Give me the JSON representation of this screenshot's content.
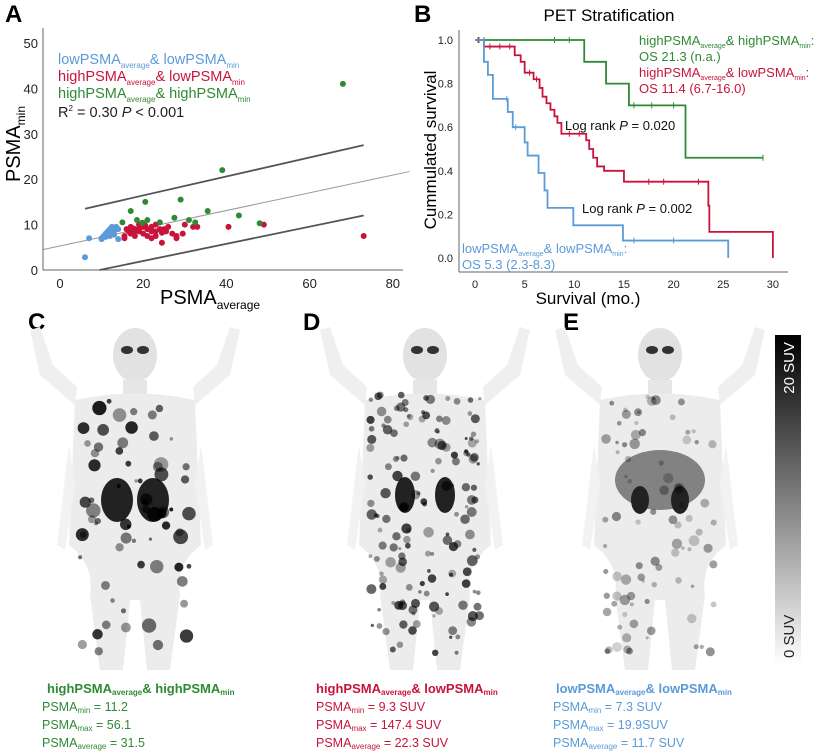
{
  "panels": {
    "a": "A",
    "b": "B",
    "c": "C",
    "d": "D",
    "e": "E"
  },
  "colors": {
    "low_low": "#5b9bd8",
    "high_low": "#c8143c",
    "high_high": "#2f8a34",
    "axis": "#555555",
    "fit": "#999999",
    "ci": "#555555"
  },
  "chart_data": [
    {
      "type": "scatter",
      "xlabel": {
        "t": "PSMA",
        "s": "average"
      },
      "ylabel": {
        "t": "PSMA",
        "s": "min"
      },
      "xlim": [
        -4,
        84
      ],
      "ylim": [
        0,
        52
      ],
      "xticks": [
        "0",
        "20",
        "40",
        "60",
        "80"
      ],
      "yticks": [
        "0",
        "10",
        "20",
        "30",
        "40",
        "50"
      ],
      "legend": [
        {
          "t1": "lowPSMA",
          "s1": "average",
          "t2": "& lowPSMA",
          "s2": "min",
          "color": "#5b9bd8"
        },
        {
          "t1": "highPSMA",
          "s1": "average",
          "t2": "& lowPSMA",
          "s2": "min",
          "color": "#c8143c"
        },
        {
          "t1": "highPSMA",
          "s1": "average",
          "t2": "& highPSMA",
          "s2": "min",
          "color": "#2f8a34"
        }
      ],
      "stats": {
        "r2_label": "R",
        "r2_sup": "2",
        "r2_value": " = 0.30 ",
        "p": "P",
        "p_value": " < 0.001"
      },
      "legend_position": "top-left",
      "series": [
        {
          "name": "lowPSMA_average & lowPSMA_min",
          "color": "#5b9bd8",
          "points": [
            [
              6,
              2.8
            ],
            [
              7,
              7
            ],
            [
              10,
              7
            ],
            [
              10.5,
              7.5
            ],
            [
              11,
              8
            ],
            [
              11.5,
              8.5
            ],
            [
              12,
              7.5
            ],
            [
              12,
              9
            ],
            [
              12.5,
              8
            ],
            [
              13,
              8.5
            ],
            [
              13.5,
              9.5
            ],
            [
              14,
              6.8
            ],
            [
              14,
              9
            ],
            [
              11,
              7.3
            ],
            [
              12.5,
              9.5
            ],
            [
              13,
              7.8
            ],
            [
              10,
              6.8
            ],
            [
              11.8,
              8.2
            ],
            [
              12.8,
              8.8
            ]
          ]
        },
        {
          "name": "highPSMA_average & lowPSMA_min",
          "color": "#c8143c",
          "points": [
            [
              49,
              10
            ],
            [
              40.5,
              9.5
            ],
            [
              73,
              7.5
            ],
            [
              24.5,
              6
            ],
            [
              28,
              7
            ],
            [
              28,
              7.5
            ],
            [
              29.5,
              8
            ],
            [
              32,
              9.5
            ],
            [
              33,
              9.5
            ],
            [
              30,
              10
            ],
            [
              26,
              9.5
            ],
            [
              27,
              8
            ],
            [
              15.5,
              7
            ],
            [
              15.5,
              7.5
            ],
            [
              17,
              8
            ],
            [
              18,
              8.5
            ],
            [
              19,
              9
            ],
            [
              20,
              9.5
            ],
            [
              21,
              7.5
            ],
            [
              22,
              7
            ],
            [
              23,
              7.5
            ],
            [
              23,
              8.5
            ],
            [
              24,
              9
            ],
            [
              16,
              9
            ],
            [
              17,
              9.5
            ],
            [
              18,
              9
            ],
            [
              19,
              10
            ],
            [
              20,
              8
            ],
            [
              21,
              9
            ],
            [
              22,
              9.5
            ],
            [
              23,
              10
            ],
            [
              25,
              9
            ],
            [
              25.5,
              8.5
            ],
            [
              19,
              8.5
            ],
            [
              18,
              7.5
            ],
            [
              22,
              8.5
            ],
            [
              16.5,
              8.5
            ],
            [
              17.5,
              9.2
            ],
            [
              20.5,
              9.8
            ],
            [
              24.5,
              8.2
            ]
          ]
        },
        {
          "name": "highPSMA_average & highPSMA_min",
          "color": "#2f8a34",
          "points": [
            [
              68,
              41
            ],
            [
              39,
              22
            ],
            [
              20.5,
              15
            ],
            [
              29,
              15.5
            ],
            [
              17,
              13
            ],
            [
              35.5,
              13
            ],
            [
              43,
              12
            ],
            [
              27.5,
              11.5
            ],
            [
              18.5,
              11
            ],
            [
              21,
              11
            ],
            [
              31,
              11
            ],
            [
              32.5,
              10.5
            ],
            [
              15,
              10.5
            ],
            [
              19.8,
              10.4
            ],
            [
              24,
              10.5
            ],
            [
              48,
              10.3
            ]
          ]
        }
      ],
      "fit_line": {
        "intercept": 5.3,
        "slope": 0.195,
        "x_range": [
          -4,
          84
        ]
      },
      "ci_upper": [
        [
          6,
          13.5
        ],
        [
          73,
          27.5
        ]
      ],
      "ci_lower": [
        [
          9.5,
          0
        ],
        [
          73,
          12
        ]
      ]
    },
    {
      "type": "line",
      "title": "PET Stratification",
      "xlabel": "Survival (mo.)",
      "ylabel": "Cummulated survival",
      "xlim": [
        0,
        30
      ],
      "ylim": [
        0,
        1
      ],
      "xticks": [
        "0",
        "5",
        "10",
        "15",
        "20",
        "25",
        "30"
      ],
      "yticks": [
        "0.0",
        "0.2",
        "0.4",
        "0.6",
        "0.8",
        "1.0"
      ],
      "annotations": {
        "green": {
          "t1": "highPSMA",
          "s1": "average",
          "t2": "& highPSMA",
          "s2": "min",
          "t3": ":",
          "os": "OS 21.3 (n.a.)"
        },
        "red": {
          "t1": "highPSMA",
          "s1": "average",
          "t2": "& lowPSMA",
          "s2": "min",
          "t3": ":",
          "os": "OS 11.4 (6.7-16.0)"
        },
        "blue": {
          "t1": "lowPSMA",
          "s1": "average",
          "t2": "& lowPSMA",
          "s2": "min",
          "t3": ":",
          "os": "OS 5.3 (2.3-8.3)"
        },
        "logrank1": {
          "t": "Log rank ",
          "p": "P",
          "v": " = 0.020"
        },
        "logrank2": {
          "t": "Log rank ",
          "p": "P",
          "v": " = 0.002"
        }
      },
      "series": [
        {
          "name": "highPSMA_average & highPSMA_min",
          "color": "#2f8a34",
          "steps": [
            [
              0,
              1
            ],
            [
              11,
              0.9
            ],
            [
              13.2,
              0.8
            ],
            [
              15.5,
              0.7
            ],
            [
              21.2,
              0.46
            ]
          ],
          "end": 29,
          "censors": [
            0.4,
            0.9,
            8,
            9.5,
            16,
            17.8,
            20,
            29
          ]
        },
        {
          "name": "highPSMA_average & lowPSMA_min",
          "color": "#c8143c",
          "steps": [
            [
              0,
              1
            ],
            [
              0.9,
              0.97
            ],
            [
              4,
              0.93
            ],
            [
              4.6,
              0.9
            ],
            [
              5,
              0.85
            ],
            [
              5.9,
              0.82
            ],
            [
              6.5,
              0.78
            ],
            [
              6.8,
              0.74
            ],
            [
              7.2,
              0.71
            ],
            [
              7.6,
              0.68
            ],
            [
              8,
              0.65
            ],
            [
              8.3,
              0.62
            ],
            [
              8.7,
              0.57
            ],
            [
              11.2,
              0.54
            ],
            [
              11.5,
              0.5
            ],
            [
              11.9,
              0.46
            ],
            [
              12.3,
              0.42
            ],
            [
              13,
              0.4
            ],
            [
              15,
              0.35
            ],
            [
              23.5,
              0.24
            ],
            [
              23.6,
              0.12
            ],
            [
              30,
              0
            ]
          ],
          "end": 30,
          "censors": [
            0.3,
            1.5,
            2.5,
            3.5,
            5.5,
            6.2,
            9.5,
            10.5,
            17.5,
            19,
            22.5
          ]
        },
        {
          "name": "lowPSMA_average & lowPSMA_min",
          "color": "#5b9bd8",
          "steps": [
            [
              0,
              1
            ],
            [
              0.9,
              0.9
            ],
            [
              1.3,
              0.84
            ],
            [
              1.8,
              0.73
            ],
            [
              3.3,
              0.67
            ],
            [
              3.8,
              0.6
            ],
            [
              5,
              0.53
            ],
            [
              5.3,
              0.47
            ],
            [
              6.4,
              0.39
            ],
            [
              7,
              0.31
            ],
            [
              7.3,
              0.23
            ],
            [
              9.9,
              0.15
            ],
            [
              14.9,
              0.08
            ],
            [
              25.5,
              0
            ]
          ],
          "end": 25.5,
          "censors": [
            3.2,
            4.1,
            16,
            20
          ]
        }
      ]
    }
  ],
  "images": {
    "colorbar": {
      "max_label": "20 SUV",
      "min_label": "0 SUV"
    },
    "c": {
      "title": {
        "t1": "highPSMA",
        "s1": "average",
        "t2": "& highPSMA",
        "s2": "min"
      },
      "rows": [
        {
          "t": "PSMA",
          "s": "min",
          "v": " = 11.2"
        },
        {
          "t": "PSMA",
          "s": "max",
          "v": " = 56.1"
        },
        {
          "t": "PSMA",
          "s": "average",
          "v": " = 31.5"
        }
      ]
    },
    "d": {
      "title": {
        "t1": "highPSMA",
        "s1": "average",
        "t2": "& lowPSMA",
        "s2": "min"
      },
      "rows": [
        {
          "t": "PSMA",
          "s": "min",
          "v": " = 9.3 SUV"
        },
        {
          "t": "PSMA",
          "s": "max",
          "v": " =  147.4 SUV"
        },
        {
          "t": "PSMA",
          "s": "average",
          "v": " = 22.3 SUV"
        }
      ]
    },
    "e": {
      "title": {
        "t1": "lowPSMA",
        "s1": "average",
        "t2": "& lowPSMA",
        "s2": "min"
      },
      "rows": [
        {
          "t": "PSMA",
          "s": "min",
          "v": " = 7.3 SUV"
        },
        {
          "t": "PSMA",
          "s": "max",
          "v": " = 19.9SUV"
        },
        {
          "t": "PSMA",
          "s": "average",
          "v": " = 11.7 SUV"
        }
      ]
    }
  }
}
